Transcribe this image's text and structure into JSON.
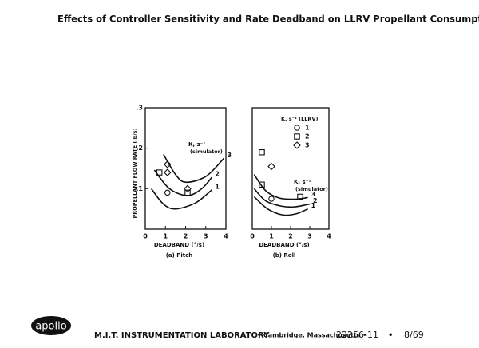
{
  "header": {
    "title": "Effects of Controller Sensitivity and Rate Deadband on LLRV Propellant Consumption"
  },
  "footer": {
    "logo": "apollo",
    "lab": "M.I.T. INSTRUMENTATION LABORATORY",
    "location": "• Cambridge, Massachusetts •",
    "number": "22256-11",
    "separator": "•",
    "date": "8/69"
  },
  "chart_data": [
    {
      "type": "line",
      "subtitle": "(a) Pitch",
      "xlabel": "DEADBAND (°/s)",
      "ylabel": "PROPELLANT FLOW RATE (lb/s)",
      "xlim": [
        0,
        4
      ],
      "ylim": [
        0,
        0.3
      ],
      "xticks": [
        0,
        1,
        2,
        3,
        4
      ],
      "yticks": [
        {
          "value": 0.1,
          "label": ".1"
        },
        {
          "value": 0.2,
          "label": ".2"
        },
        {
          "value": 0.3,
          "label": ".3"
        }
      ],
      "curve_key_title": "K, s⁻¹",
      "curve_key_subtitle": "(simulator)",
      "series": [
        {
          "name": "3",
          "x": [
            0.9,
            1.5,
            2,
            3,
            3.9
          ],
          "values": [
            0.185,
            0.135,
            0.116,
            0.13,
            0.175
          ]
        },
        {
          "name": "2",
          "x": [
            0.45,
            1.2,
            2.1,
            2.8,
            3.3
          ],
          "values": [
            0.146,
            0.1,
            0.083,
            0.1,
            0.128
          ]
        },
        {
          "name": "1",
          "x": [
            0.3,
            0.9,
            1.5,
            2.5,
            3.3
          ],
          "values": [
            0.1,
            0.062,
            0.05,
            0.065,
            0.097
          ]
        }
      ],
      "points": [
        {
          "marker": "circle",
          "x": [
            1.1
          ],
          "values": [
            0.09
          ]
        },
        {
          "marker": "square",
          "x": [
            0.7,
            2.1
          ],
          "values": [
            0.14,
            0.09
          ]
        },
        {
          "marker": "diamond",
          "x": [
            1.1,
            1.1,
            2.1
          ],
          "values": [
            0.16,
            0.14,
            0.1
          ]
        }
      ]
    },
    {
      "type": "line",
      "subtitle": "(b) Roll",
      "xlabel": "DEADBAND (°/s)",
      "xlim": [
        0,
        4
      ],
      "ylim": [
        0,
        0.3
      ],
      "xticks": [
        0,
        1,
        2,
        3,
        4
      ],
      "curve_key_title": "K, s⁻¹",
      "curve_key_subtitle": "(simulator)",
      "legend_title": "K, s⁻¹ (LLRV)",
      "series": [
        {
          "name": "3",
          "x": [
            0.1,
            0.7,
            1.4,
            2.2,
            2.9
          ],
          "values": [
            0.135,
            0.095,
            0.077,
            0.074,
            0.078
          ]
        },
        {
          "name": "2",
          "x": [
            0.1,
            0.7,
            1.5,
            2.2,
            3
          ],
          "values": [
            0.1,
            0.07,
            0.057,
            0.055,
            0.062
          ]
        },
        {
          "name": "1",
          "x": [
            0.1,
            0.8,
            1.6,
            2.3,
            2.9
          ],
          "values": [
            0.08,
            0.05,
            0.035,
            0.038,
            0.05
          ]
        }
      ],
      "points": [
        {
          "name": "1",
          "marker": "circle",
          "x": [
            1
          ],
          "values": [
            0.075
          ]
        },
        {
          "name": "2",
          "marker": "square",
          "x": [
            0.5,
            0.5,
            2.5
          ],
          "values": [
            0.19,
            0.11,
            0.08
          ]
        },
        {
          "name": "3",
          "marker": "diamond",
          "x": [
            1
          ],
          "values": [
            0.155
          ]
        }
      ]
    }
  ]
}
